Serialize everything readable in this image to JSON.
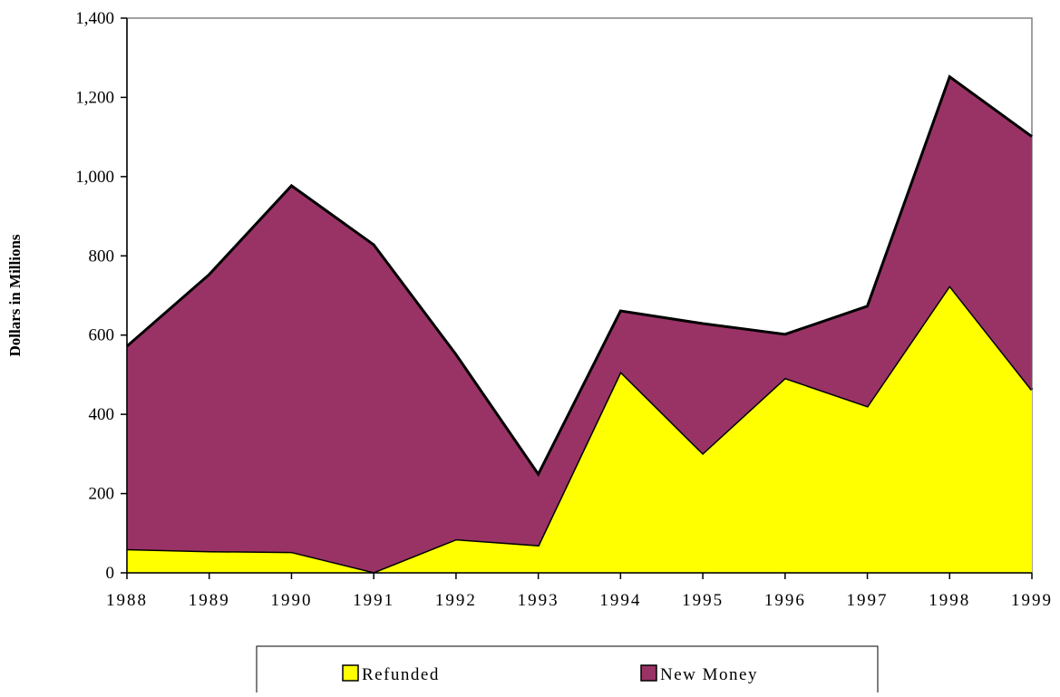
{
  "chart_data": {
    "type": "stacked-area",
    "y_label": "Dollars in Millions",
    "categories": [
      "1988",
      "1989",
      "1990",
      "1991",
      "1992",
      "1993",
      "1994",
      "1995",
      "1996",
      "1997",
      "1998",
      "1999"
    ],
    "series": [
      {
        "name": "Refunded",
        "color": "#ffff00",
        "values": [
          60,
          55,
          53,
          2,
          85,
          70,
          508,
          302,
          492,
          421,
          725,
          462
        ]
      },
      {
        "name": "New Money",
        "color": "#993366",
        "values": [
          512,
          698,
          924,
          826,
          466,
          179,
          153,
          327,
          110,
          252,
          527,
          639
        ]
      }
    ],
    "ylim": [
      0,
      1400
    ],
    "yticks": [
      0,
      200,
      400,
      600,
      800,
      {
        "value": 1000,
        "label": "1,000"
      },
      {
        "value": 1200,
        "label": "1,200"
      },
      {
        "value": 1400,
        "label": "1,400"
      }
    ]
  }
}
